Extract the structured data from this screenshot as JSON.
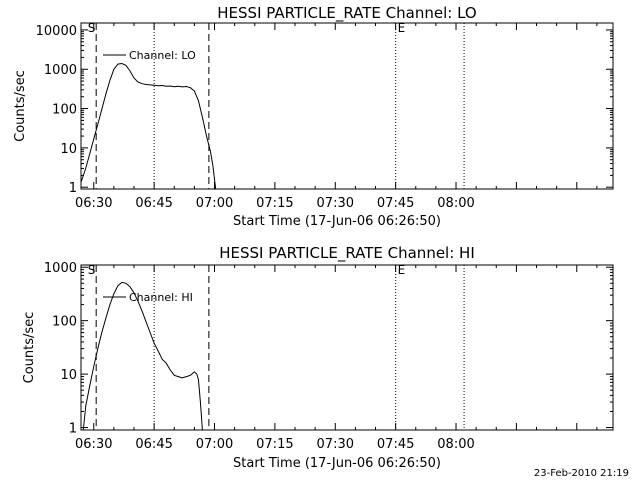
{
  "footer_timestamp": "23-Feb-2010 21:19",
  "chart_data": [
    {
      "type": "line",
      "title": "HESSI PARTICLE_RATE Channel: LO",
      "xlabel": "Start Time (17-Jun-06 06:26:50)",
      "ylabel": "Counts/sec",
      "yscale": "log",
      "ylim": [
        0.9,
        15000
      ],
      "xlim_min": [
        386.83,
        519
      ],
      "yticks": [
        1,
        10,
        100,
        1000,
        10000
      ],
      "ytick_labels": [
        "1",
        "10",
        "100",
        "1000",
        "10000"
      ],
      "xticks_min": [
        390,
        405,
        420,
        435,
        450,
        465,
        480
      ],
      "xtick_labels": [
        "06:30",
        "06:45",
        "07:00",
        "07:15",
        "07:30",
        "07:45",
        "08:00"
      ],
      "legend": "Channel: LO",
      "legend_position": "top-left",
      "markers": [
        {
          "label": "S",
          "x_min": 388.0
        },
        {
          "label": "E",
          "x_min": 465.0
        }
      ],
      "vlines": [
        {
          "x_min": 390.6,
          "style": "dashed"
        },
        {
          "x_min": 405.0,
          "style": "dotted"
        },
        {
          "x_min": 418.6,
          "style": "dashed"
        },
        {
          "x_min": 465.0,
          "style": "dotted"
        },
        {
          "x_min": 482.0,
          "style": "dotted"
        }
      ],
      "series": [
        {
          "name": "Channel: LO",
          "x_min": [
            386.9,
            388.0,
            389.0,
            390.0,
            391.0,
            392.0,
            393.0,
            394.0,
            395.0,
            396.0,
            397.0,
            398.0,
            399.0,
            400.0,
            401.0,
            402.0,
            403.0,
            404.0,
            405.0,
            406.0,
            407.0,
            408.0,
            409.0,
            410.0,
            411.0,
            412.0,
            413.0,
            414.0,
            415.0,
            416.0,
            417.0,
            418.0,
            419.0,
            419.6,
            420.0,
            420.3
          ],
          "values": [
            1.4,
            3,
            7,
            17,
            40,
            95,
            230,
            520,
            1000,
            1350,
            1400,
            1250,
            900,
            600,
            470,
            430,
            410,
            400,
            390,
            380,
            385,
            370,
            375,
            360,
            370,
            355,
            365,
            340,
            280,
            160,
            60,
            20,
            8,
            3.5,
            1.6,
            0.9
          ]
        }
      ]
    },
    {
      "type": "line",
      "title": "HESSI PARTICLE_RATE Channel: HI",
      "xlabel": "Start Time (17-Jun-06 06:26:50)",
      "ylabel": "Counts/sec",
      "yscale": "log",
      "ylim": [
        0.9,
        1100
      ],
      "xlim_min": [
        386.83,
        519
      ],
      "yticks": [
        1,
        10,
        100,
        1000
      ],
      "ytick_labels": [
        "1",
        "10",
        "100",
        "1000"
      ],
      "xticks_min": [
        390,
        405,
        420,
        435,
        450,
        465,
        480
      ],
      "xtick_labels": [
        "06:30",
        "06:45",
        "07:00",
        "07:15",
        "07:30",
        "07:45",
        "08:00"
      ],
      "legend": "Channel: HI",
      "legend_position": "top-left",
      "markers": [
        {
          "label": "S",
          "x_min": 388.0
        },
        {
          "label": "E",
          "x_min": 465.0
        }
      ],
      "vlines": [
        {
          "x_min": 390.6,
          "style": "dashed"
        },
        {
          "x_min": 405.0,
          "style": "dotted"
        },
        {
          "x_min": 418.6,
          "style": "dashed"
        },
        {
          "x_min": 465.0,
          "style": "dotted"
        },
        {
          "x_min": 482.0,
          "style": "dotted"
        }
      ],
      "series": [
        {
          "name": "Channel: HI",
          "x_min": [
            387.4,
            388.0,
            389.0,
            390.0,
            391.0,
            392.0,
            393.0,
            394.0,
            395.0,
            396.0,
            397.0,
            398.0,
            399.0,
            400.0,
            401.0,
            402.0,
            403.0,
            404.0,
            405.0,
            406.0,
            407.0,
            408.0,
            409.0,
            410.0,
            411.0,
            412.0,
            413.0,
            414.0,
            415.0,
            415.6,
            416.0,
            416.5,
            417.0
          ],
          "values": [
            0.9,
            2.5,
            6,
            14,
            30,
            60,
            110,
            200,
            320,
            450,
            520,
            500,
            430,
            330,
            230,
            150,
            95,
            60,
            38,
            27,
            19,
            16,
            12,
            9.5,
            9,
            8.5,
            9,
            9.5,
            11,
            10,
            8,
            3,
            0.9
          ]
        }
      ]
    }
  ]
}
